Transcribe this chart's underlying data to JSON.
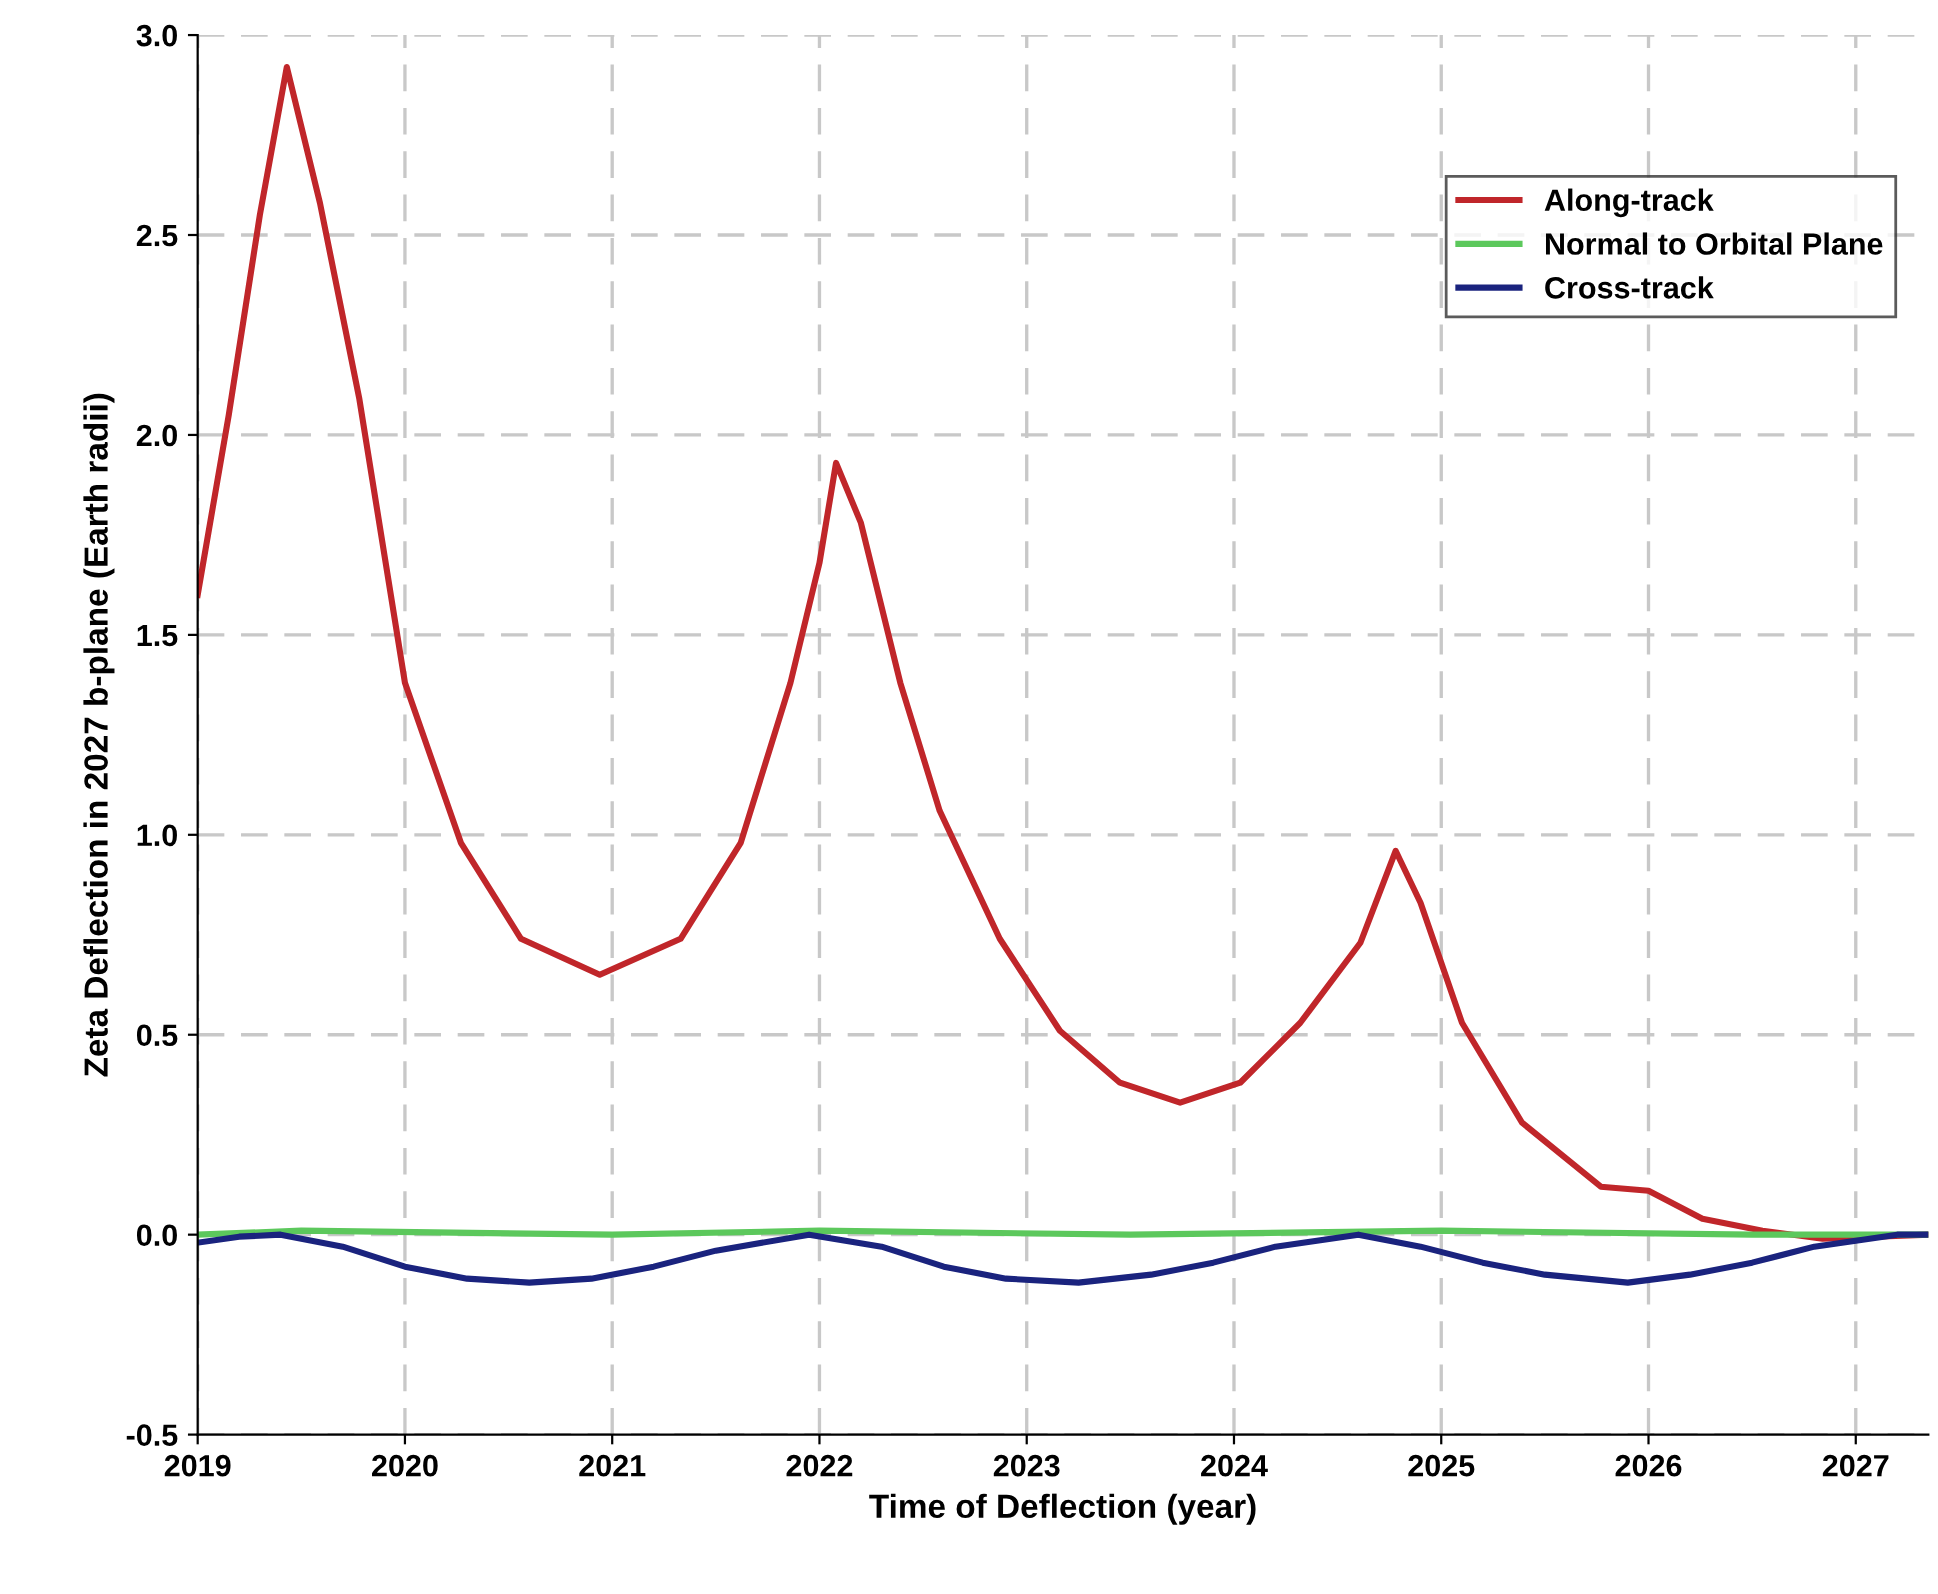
{
  "chart_data": {
    "type": "line",
    "xlabel": "Time of Deflection (year)",
    "ylabel": "Zeta Deflection in 2027 b-plane (Earth radii)",
    "xlim": [
      2019,
      2027.35
    ],
    "xticks": [
      2019,
      2020,
      2021,
      2022,
      2023,
      2024,
      2025,
      2026,
      2027
    ],
    "ylim": [
      -0.5,
      3.0
    ],
    "yticks": [
      {
        "value": -0.5,
        "label": "-0.5"
      },
      {
        "value": 0,
        "label": "0.0"
      },
      {
        "value": 0.5,
        "label": "0.5"
      },
      {
        "value": 1.0,
        "label": "1.0"
      },
      {
        "value": 1.5,
        "label": "1.5"
      },
      {
        "value": 2.0,
        "label": "2.0"
      },
      {
        "value": 2.5,
        "label": "2.5"
      },
      {
        "value": 3.0,
        "label": "3.0"
      }
    ],
    "grid": true,
    "legend": "top right",
    "line_style": "solid",
    "marker": "none",
    "series": [
      {
        "name": "Along-track",
        "color": "#c0262a",
        "x": [
          2019.0,
          2019.15,
          2019.3,
          2019.43,
          2019.59,
          2019.78,
          2020.0,
          2020.27,
          2020.56,
          2020.94,
          2021.33,
          2021.62,
          2021.86,
          2022.0,
          2022.08,
          2022.2,
          2022.39,
          2022.58,
          2022.87,
          2023.16,
          2023.45,
          2023.74,
          2024.03,
          2024.32,
          2024.61,
          2024.78,
          2024.9,
          2025.1,
          2025.39,
          2025.77,
          2026.0,
          2026.26,
          2026.55,
          2026.84,
          2027.35
        ],
        "values": [
          1.6,
          2.05,
          2.55,
          2.92,
          2.58,
          2.09,
          1.38,
          0.98,
          0.74,
          0.65,
          0.74,
          0.98,
          1.38,
          1.68,
          1.93,
          1.78,
          1.38,
          1.06,
          0.74,
          0.51,
          0.38,
          0.33,
          0.38,
          0.53,
          0.73,
          0.96,
          0.83,
          0.53,
          0.28,
          0.12,
          0.11,
          0.04,
          0.01,
          -0.01,
          0.0
        ]
      },
      {
        "name": "Normal to Orbital Plane",
        "color": "#5cc85c",
        "x": [
          2019.0,
          2019.5,
          2021.0,
          2022.0,
          2023.5,
          2025.0,
          2026.5,
          2027.35
        ],
        "values": [
          0.0,
          0.01,
          0.0,
          0.01,
          0.0,
          0.01,
          0.0,
          0.0
        ]
      },
      {
        "name": "Cross-track",
        "color": "#1a237e",
        "x": [
          2019.0,
          2019.2,
          2019.4,
          2019.7,
          2020.0,
          2020.3,
          2020.6,
          2020.9,
          2021.2,
          2021.5,
          2021.95,
          2022.3,
          2022.6,
          2022.9,
          2023.25,
          2023.6,
          2023.9,
          2024.2,
          2024.6,
          2024.9,
          2025.2,
          2025.5,
          2025.9,
          2026.2,
          2026.5,
          2026.8,
          2027.2,
          2027.35
        ],
        "values": [
          -0.02,
          -0.005,
          0.0,
          -0.03,
          -0.08,
          -0.11,
          -0.12,
          -0.11,
          -0.08,
          -0.04,
          0.0,
          -0.03,
          -0.08,
          -0.11,
          -0.12,
          -0.1,
          -0.07,
          -0.03,
          0.0,
          -0.03,
          -0.07,
          -0.1,
          -0.12,
          -0.1,
          -0.07,
          -0.03,
          0.0,
          0.0
        ]
      }
    ]
  }
}
